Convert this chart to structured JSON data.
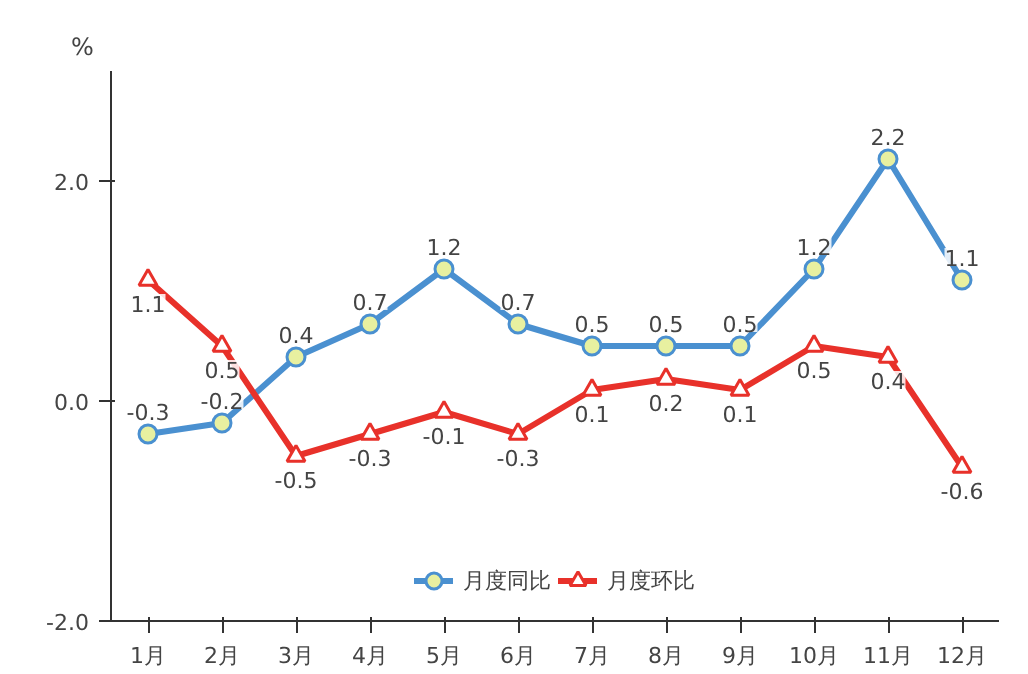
{
  "chart_data": {
    "type": "line",
    "ylabel": "%",
    "categories": [
      "1月",
      "2月",
      "3月",
      "4月",
      "5月",
      "6月",
      "7月",
      "8月",
      "9月",
      "10月",
      "11月",
      "12月"
    ],
    "series": [
      {
        "name": "月度同比",
        "color": "#4a90d0",
        "marker": "circle",
        "values": [
          -0.3,
          -0.2,
          0.4,
          0.7,
          1.2,
          0.7,
          0.5,
          0.5,
          0.5,
          1.2,
          2.2,
          1.1
        ]
      },
      {
        "name": "月度环比",
        "color": "#e8312a",
        "marker": "triangle",
        "values": [
          1.1,
          0.5,
          -0.5,
          -0.3,
          -0.1,
          -0.3,
          0.1,
          0.2,
          0.1,
          0.5,
          0.4,
          -0.6
        ]
      }
    ],
    "ylim": [
      -2,
      3
    ],
    "yticks": [
      {
        "value": -2,
        "label": "-2.0"
      },
      {
        "value": 0,
        "label": "0.0"
      },
      {
        "value": 2,
        "label": "2.0"
      }
    ],
    "data_labels": true,
    "grid": false,
    "legend": "bottom",
    "line_style": "solid"
  }
}
